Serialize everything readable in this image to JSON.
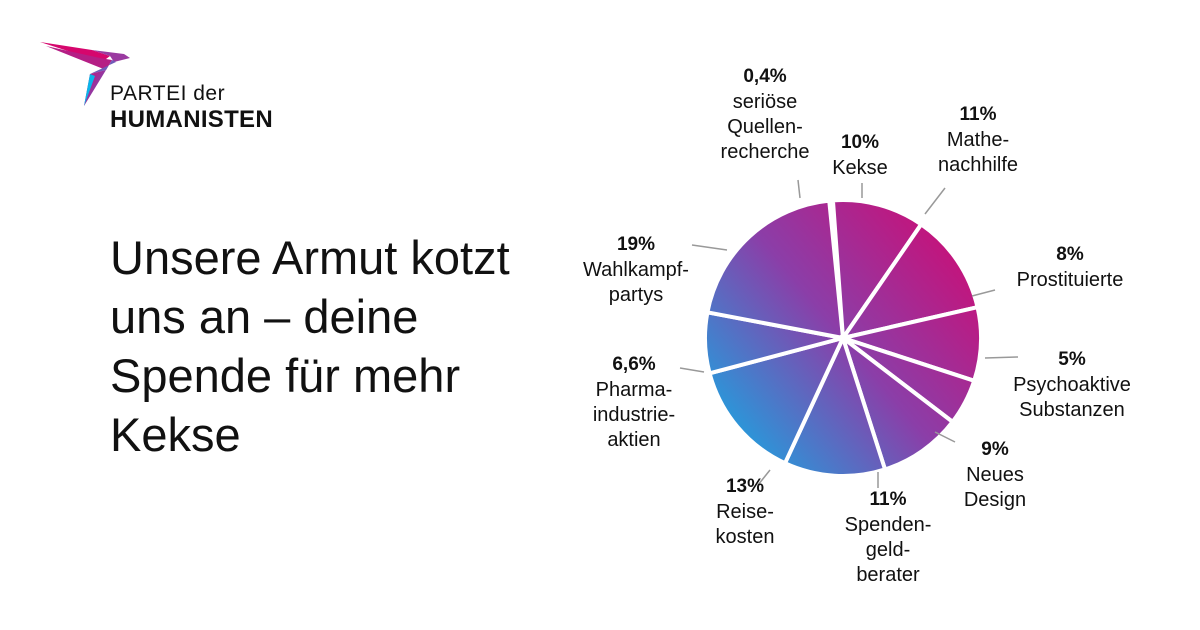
{
  "logo": {
    "line1": "PARTEI der",
    "line2": "HUMANISTEN"
  },
  "headline": {
    "lines": [
      "Unsere Armut kotzt",
      "uns an – deine",
      "Spende für mehr",
      "Kekse"
    ]
  },
  "colors": {
    "magenta": "#d6066d",
    "purple": "#8b3ea8",
    "cyan": "#0ab5ea",
    "blue": "#3a7fd4",
    "leader": "#999999"
  },
  "chart_data": {
    "type": "pie",
    "slices": [
      {
        "pct": "0,4%",
        "value": 0.4,
        "label": [
          "seriöse",
          "Quellen-",
          "recherche"
        ]
      },
      {
        "pct": "10%",
        "value": 10,
        "label": [
          "Kekse"
        ]
      },
      {
        "pct": "11%",
        "value": 11,
        "label": [
          "Mathe-",
          "nachhilfe"
        ]
      },
      {
        "pct": "8%",
        "value": 8,
        "label": [
          "Prostituierte"
        ]
      },
      {
        "pct": "5%",
        "value": 5,
        "label": [
          "Psychoaktive",
          "Substanzen"
        ]
      },
      {
        "pct": "9%",
        "value": 9,
        "label": [
          "Neues",
          "Design"
        ]
      },
      {
        "pct": "11%",
        "value": 11,
        "label": [
          "Spenden-",
          "geld-",
          "berater"
        ]
      },
      {
        "pct": "13%",
        "value": 13,
        "label": [
          "Reise-",
          "kosten"
        ]
      },
      {
        "pct": "6,6%",
        "value": 6.6,
        "label": [
          "Pharma-",
          "industrie-",
          "aktien"
        ]
      },
      {
        "pct": "19%",
        "value": 19,
        "label": [
          "Wahlkampf-",
          "partys"
        ]
      }
    ]
  }
}
